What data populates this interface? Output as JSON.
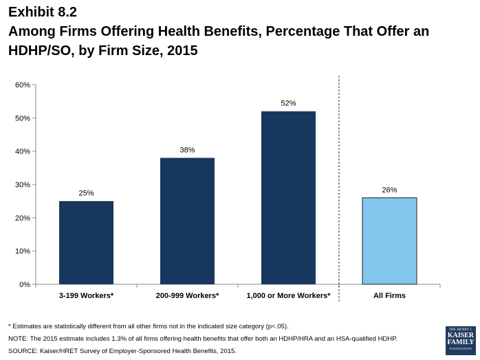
{
  "exhibit": "Exhibit 8.2",
  "title_lines": [
    "Among Firms Offering Health Benefits, Percentage That Offer an",
    "HDHP/SO, by Firm Size, 2015"
  ],
  "chart_data": {
    "type": "bar",
    "categories": [
      "3-199 Workers*",
      "200-999 Workers*",
      "1,000 or More Workers*",
      "All Firms"
    ],
    "values": [
      25,
      38,
      52,
      26
    ],
    "data_labels": [
      "25%",
      "38%",
      "52%",
      "26%"
    ],
    "bar_colors": [
      "#17375e",
      "#17375e",
      "#17375e",
      "#82c6ee"
    ],
    "ylim": [
      0,
      60
    ],
    "yticks": [
      0,
      10,
      20,
      30,
      40,
      50,
      60
    ],
    "ytick_labels": [
      "0%",
      "10%",
      "20%",
      "30%",
      "40%",
      "50%",
      "60%"
    ],
    "separator": "dashed line between 1,000 or More Workers* and All Firms",
    "grid": false
  },
  "notes": [
    "* Estimates are statistically different from all other firms not in the indicated size category  (p<.05).",
    "NOTE:  The 2015 estimate includes 1.3% of all firms offering health benefits that offer both an HDHP/HRA and an HSA-qualified HDHP.",
    "SOURCE:  Kaiser/HRET Survey of Employer-Sponsored Health Benefits, 2015."
  ],
  "logo": {
    "top": "THE HENRY J.",
    "line1": "KAISER",
    "line2": "FAMILY",
    "bottom": "FOUNDATION"
  }
}
